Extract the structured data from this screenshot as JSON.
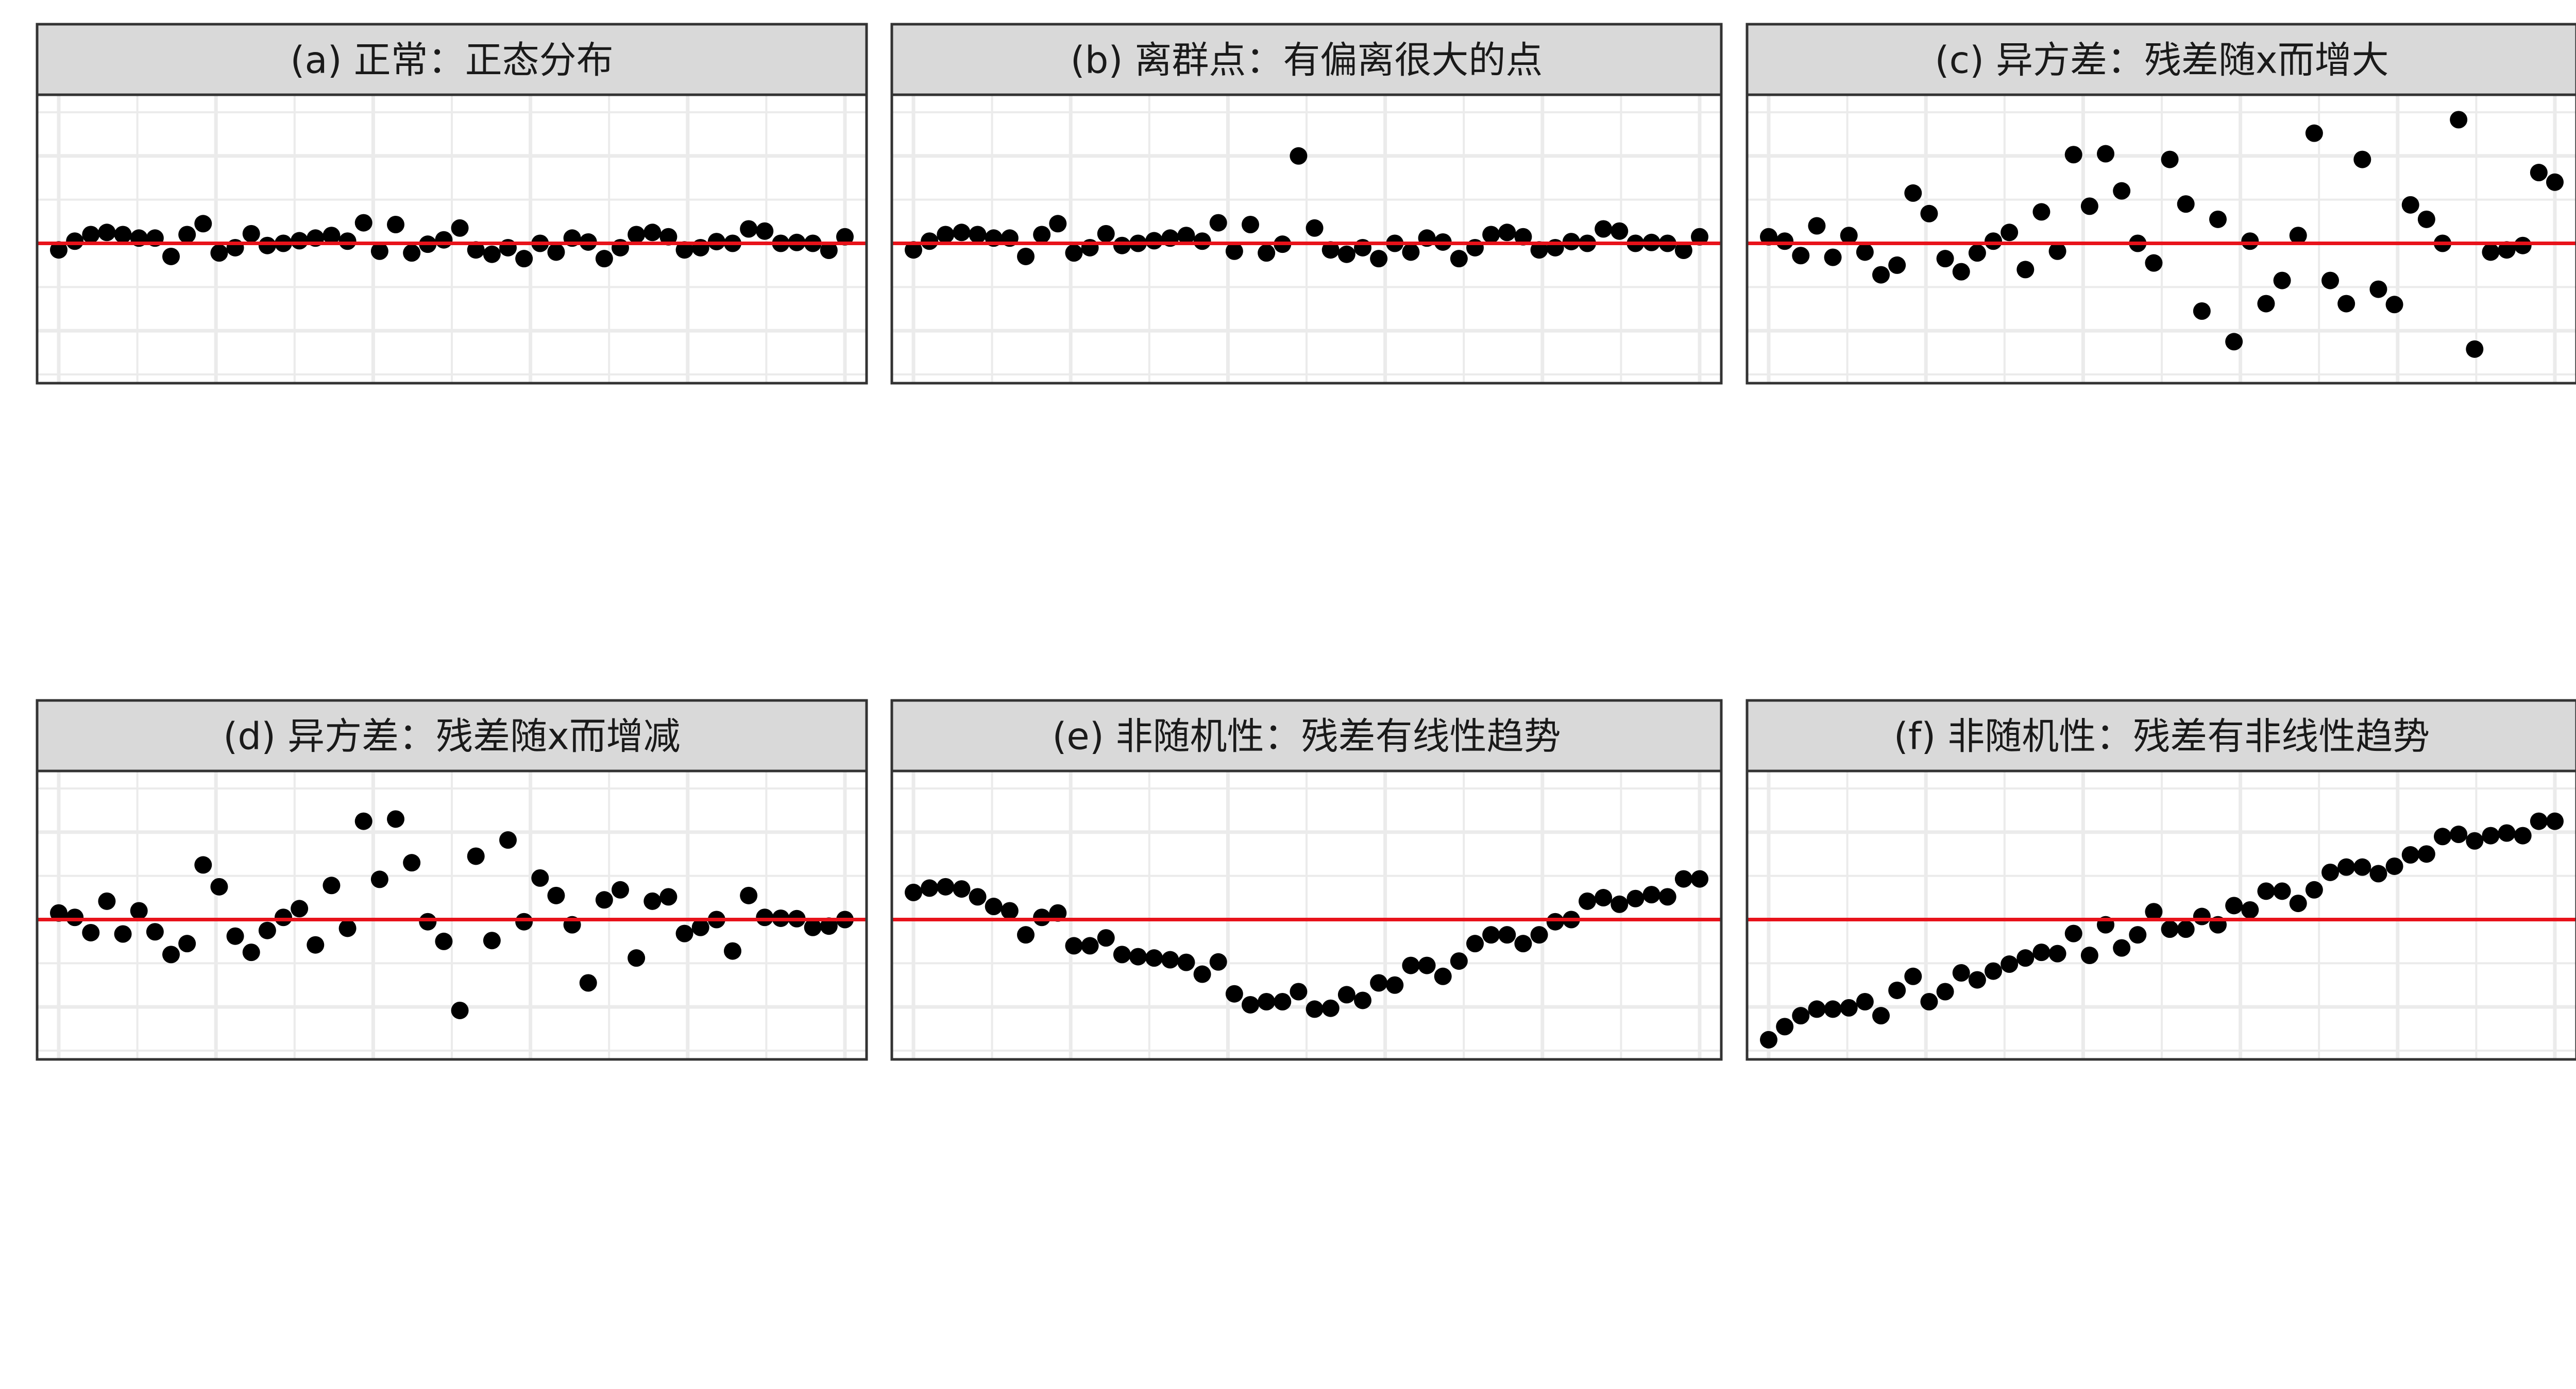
{
  "figure": {
    "colors": {
      "strip_fill": "#d9d9d9",
      "panel_border": "#333333",
      "grid": "#ebebeb",
      "reference_line": "#e8121a",
      "points": "#000000",
      "background": "#ffffff"
    },
    "point_shape": "filled-circle",
    "reference_line_y": 0
  },
  "chart_data": [
    {
      "type": "scatter",
      "title": "(a) 正常：正态分布",
      "xlabel": "",
      "ylabel": "",
      "xlim": [
        1,
        50
      ],
      "ylim": [
        -3.2,
        3.4
      ],
      "grid": true,
      "hline": 0,
      "x": [
        1,
        2,
        3,
        4,
        5,
        6,
        7,
        8,
        9,
        10,
        11,
        12,
        13,
        14,
        15,
        16,
        17,
        18,
        19,
        20,
        21,
        22,
        23,
        24,
        25,
        26,
        27,
        28,
        29,
        30,
        31,
        32,
        33,
        34,
        35,
        36,
        37,
        38,
        39,
        40,
        41,
        42,
        43,
        44,
        45,
        46,
        47,
        48,
        49,
        50
      ],
      "y": [
        -0.15,
        0.05,
        0.2,
        0.25,
        0.2,
        0.12,
        0.12,
        -0.3,
        0.2,
        0.45,
        -0.22,
        -0.1,
        0.22,
        -0.05,
        0.0,
        0.06,
        0.12,
        0.18,
        0.05,
        0.47,
        -0.18,
        0.43,
        -0.22,
        -0.02,
        0.08,
        0.35,
        -0.15,
        -0.25,
        -0.1,
        -0.35,
        0.0,
        -0.2,
        0.12,
        0.03,
        -0.35,
        -0.1,
        0.2,
        0.25,
        0.15,
        -0.15,
        -0.1,
        0.04,
        0.0,
        0.33,
        0.28,
        0.0,
        0.02,
        0.0,
        -0.16,
        0.15
      ]
    },
    {
      "type": "scatter",
      "title": "(b) 离群点：有偏离很大的点",
      "xlabel": "",
      "ylabel": "",
      "xlim": [
        1,
        50
      ],
      "ylim": [
        -3.2,
        3.4
      ],
      "grid": true,
      "hline": 0,
      "x": [
        1,
        2,
        3,
        4,
        5,
        6,
        7,
        8,
        9,
        10,
        11,
        12,
        13,
        14,
        15,
        16,
        17,
        18,
        19,
        20,
        21,
        22,
        23,
        24,
        25,
        26,
        27,
        28,
        29,
        30,
        31,
        32,
        33,
        34,
        35,
        36,
        37,
        38,
        39,
        40,
        41,
        42,
        43,
        44,
        45,
        46,
        47,
        48,
        49,
        50
      ],
      "y": [
        -0.15,
        0.05,
        0.2,
        0.25,
        0.2,
        0.12,
        0.12,
        -0.3,
        0.2,
        0.45,
        -0.22,
        -0.1,
        0.22,
        -0.05,
        0.0,
        0.06,
        0.12,
        0.18,
        0.05,
        0.47,
        -0.18,
        0.43,
        -0.22,
        -0.02,
        2.0,
        0.35,
        -0.15,
        -0.25,
        -0.1,
        -0.35,
        0.0,
        -0.2,
        0.12,
        0.03,
        -0.35,
        -0.1,
        0.2,
        0.25,
        0.15,
        -0.15,
        -0.1,
        0.04,
        0.0,
        0.33,
        0.28,
        0.0,
        0.02,
        0.0,
        -0.16,
        0.15
      ]
    },
    {
      "type": "scatter",
      "title": "(c) 异方差：残差随x而增大",
      "xlabel": "",
      "ylabel": "",
      "xlim": [
        1,
        50
      ],
      "ylim": [
        -3.2,
        3.4
      ],
      "grid": true,
      "hline": 0,
      "x": [
        1,
        2,
        3,
        4,
        5,
        6,
        7,
        8,
        9,
        10,
        11,
        12,
        13,
        14,
        15,
        16,
        17,
        18,
        19,
        20,
        21,
        22,
        23,
        24,
        25,
        26,
        27,
        28,
        29,
        30,
        31,
        32,
        33,
        34,
        35,
        36,
        37,
        38,
        39,
        40,
        41,
        42,
        43,
        44,
        45,
        46,
        47,
        48,
        49,
        50
      ],
      "y": [
        0.15,
        0.05,
        -0.28,
        0.4,
        -0.32,
        0.18,
        -0.2,
        -0.72,
        -0.5,
        1.15,
        0.68,
        -0.35,
        -0.65,
        -0.22,
        0.05,
        0.25,
        -0.6,
        0.72,
        -0.18,
        2.03,
        0.85,
        2.05,
        1.2,
        0.0,
        -0.45,
        1.92,
        0.9,
        -1.55,
        0.55,
        -2.25,
        0.05,
        -1.38,
        -0.85,
        0.18,
        2.52,
        -0.85,
        -1.38,
        1.92,
        -1.05,
        -1.4,
        0.88,
        0.55,
        0.0,
        2.83,
        -2.42,
        -0.2,
        -0.15,
        -0.05,
        1.62,
        1.4
      ]
    },
    {
      "type": "scatter",
      "title": "(d) 异方差：残差随x而增减",
      "xlabel": "",
      "ylabel": "",
      "xlim": [
        1,
        50
      ],
      "ylim": [
        -3.2,
        3.4
      ],
      "grid": true,
      "hline": 0,
      "x": [
        1,
        2,
        3,
        4,
        5,
        6,
        7,
        8,
        9,
        10,
        11,
        12,
        13,
        14,
        15,
        16,
        17,
        18,
        19,
        20,
        21,
        22,
        23,
        24,
        25,
        26,
        27,
        28,
        29,
        30,
        31,
        32,
        33,
        34,
        35,
        36,
        37,
        38,
        39,
        40,
        41,
        42,
        43,
        44,
        45,
        46,
        47,
        48,
        49,
        50
      ],
      "y": [
        0.15,
        0.05,
        -0.3,
        0.42,
        -0.33,
        0.2,
        -0.28,
        -0.8,
        -0.55,
        1.25,
        0.75,
        -0.38,
        -0.75,
        -0.25,
        0.05,
        0.25,
        -0.58,
        0.78,
        -0.2,
        2.25,
        0.92,
        2.3,
        1.3,
        -0.05,
        -0.5,
        -2.08,
        1.45,
        -0.48,
        1.82,
        -0.05,
        0.95,
        0.55,
        -0.12,
        -1.45,
        0.45,
        0.68,
        -0.88,
        0.42,
        0.52,
        -0.32,
        -0.18,
        0.0,
        -0.72,
        0.55,
        0.05,
        0.03,
        0.02,
        -0.18,
        -0.15,
        0.0
      ]
    },
    {
      "type": "scatter",
      "title": "(e) 非随机性：残差有线性趋势",
      "xlabel": "",
      "ylabel": "",
      "xlim": [
        1,
        50
      ],
      "ylim": [
        -3.2,
        3.4
      ],
      "grid": true,
      "hline": 0,
      "x": [
        1,
        2,
        3,
        4,
        5,
        6,
        7,
        8,
        9,
        10,
        11,
        12,
        13,
        14,
        15,
        16,
        17,
        18,
        19,
        20,
        21,
        22,
        23,
        24,
        25,
        26,
        27,
        28,
        29,
        30,
        31,
        32,
        33,
        34,
        35,
        36,
        37,
        38,
        39,
        40,
        41,
        42,
        43,
        44,
        45,
        46,
        47,
        48,
        49,
        50
      ],
      "y": [
        0.62,
        0.72,
        0.75,
        0.7,
        0.52,
        0.3,
        0.2,
        -0.35,
        0.05,
        0.15,
        -0.6,
        -0.6,
        -0.42,
        -0.8,
        -0.85,
        -0.88,
        -0.92,
        -0.98,
        -1.25,
        -0.97,
        -1.7,
        -1.95,
        -1.88,
        -1.88,
        -1.65,
        -2.05,
        -2.03,
        -1.72,
        -1.85,
        -1.45,
        -1.5,
        -1.05,
        -1.05,
        -1.3,
        -0.95,
        -0.55,
        -0.35,
        -0.35,
        -0.55,
        -0.35,
        -0.05,
        0.0,
        0.42,
        0.5,
        0.35,
        0.48,
        0.57,
        0.52,
        0.93,
        0.93
      ]
    },
    {
      "type": "scatter",
      "title": "(f) 非随机性：残差有非线性趋势",
      "xlabel": "",
      "ylabel": "",
      "xlim": [
        1,
        50
      ],
      "ylim": [
        -3.2,
        3.4
      ],
      "grid": true,
      "hline": 0,
      "x": [
        1,
        2,
        3,
        4,
        5,
        6,
        7,
        8,
        9,
        10,
        11,
        12,
        13,
        14,
        15,
        16,
        17,
        18,
        19,
        20,
        21,
        22,
        23,
        24,
        25,
        26,
        27,
        28,
        29,
        30,
        31,
        32,
        33,
        34,
        35,
        36,
        37,
        38,
        39,
        40,
        41,
        42,
        43,
        44,
        45,
        46,
        47,
        48,
        49,
        50
      ],
      "y": [
        -2.75,
        -2.45,
        -2.2,
        -2.05,
        -2.05,
        -2.02,
        -1.88,
        -2.2,
        -1.62,
        -1.3,
        -1.88,
        -1.65,
        -1.22,
        -1.38,
        -1.18,
        -1.02,
        -0.88,
        -0.75,
        -0.78,
        -0.32,
        -0.82,
        -0.12,
        -0.65,
        -0.35,
        0.18,
        -0.22,
        -0.22,
        0.07,
        -0.12,
        0.32,
        0.22,
        0.65,
        0.65,
        0.37,
        0.68,
        1.08,
        1.2,
        1.2,
        1.05,
        1.22,
        1.48,
        1.5,
        1.9,
        1.95,
        1.8,
        1.92,
        1.98,
        1.92,
        2.25,
        2.25
      ]
    }
  ]
}
